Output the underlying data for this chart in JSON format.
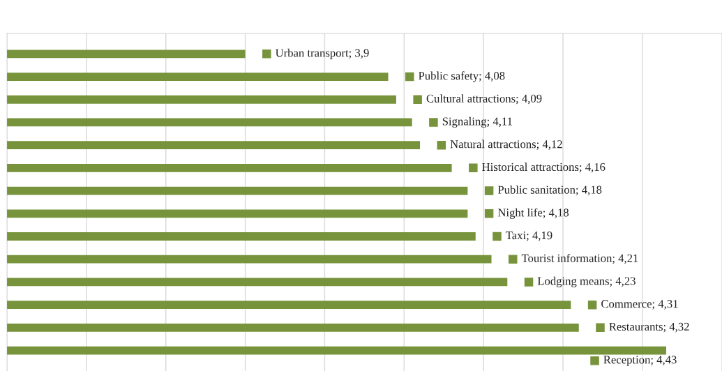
{
  "chart_data": {
    "type": "bar",
    "orientation": "horizontal",
    "categories": [
      null,
      null,
      null,
      null,
      null,
      null,
      null,
      null,
      null,
      null,
      null,
      null,
      null,
      null
    ],
    "values": [
      3.9,
      4.08,
      4.09,
      4.11,
      4.12,
      4.16,
      4.18,
      4.18,
      4.19,
      4.21,
      4.23,
      4.31,
      4.32,
      4.43
    ],
    "value_labels": [
      "Urban transport; 3,9",
      "Public safety; 4,08",
      "Cultural attractions; 4,09",
      "Signaling; 4,11",
      "Natural attractions; 4,12",
      "Historical attractions; 4,16",
      "Public sanitation; 4,18",
      "Night life; 4,18",
      "Taxi; 4,19",
      "Tourist information; 4,21",
      "Lodging means; 4,23",
      "Commerce; 4,31",
      "Restaurants; 4,32",
      "Reception; 4,43"
    ],
    "color": "#77933c",
    "xlim": [
      3.6,
      4.5
    ],
    "xticks": [
      {
        "value": 3.6,
        "label": null
      },
      {
        "value": 3.7,
        "label": null
      },
      {
        "value": 3.8,
        "label": null
      },
      {
        "value": 3.9,
        "label": null
      },
      {
        "value": 4.0,
        "label": null
      },
      {
        "value": 4.1,
        "label": null
      },
      {
        "value": 4.2,
        "label": null
      },
      {
        "value": 4.3,
        "label": null
      },
      {
        "value": 4.4,
        "label": null
      },
      {
        "value": 4.5,
        "label": null
      }
    ],
    "grid": "x",
    "legend": false
  }
}
